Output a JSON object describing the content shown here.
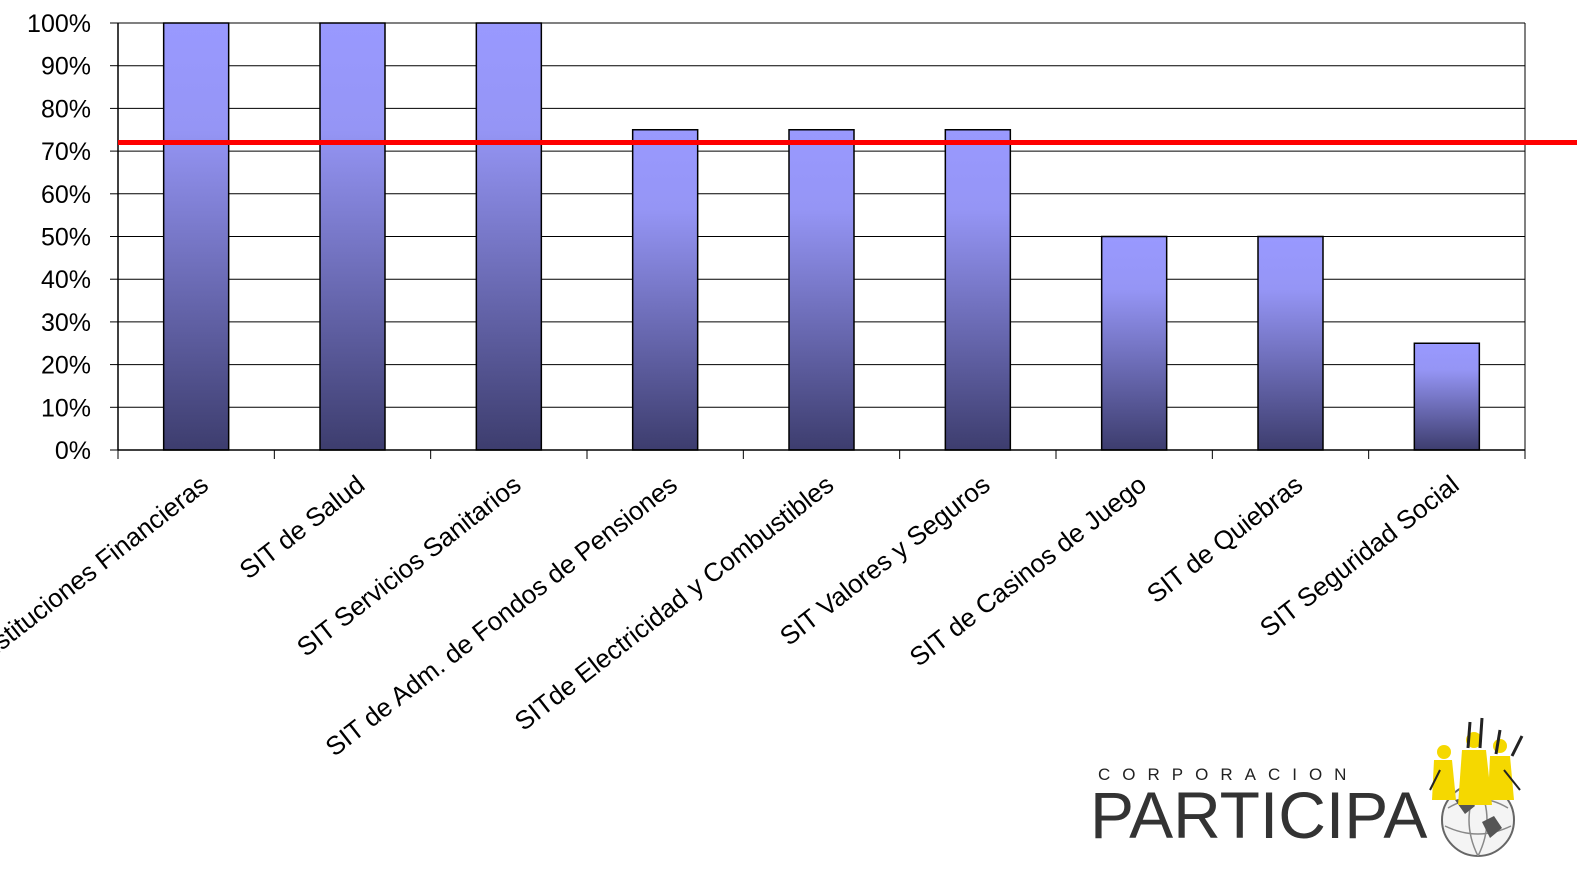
{
  "chart_data": {
    "type": "bar",
    "categories": [
      "SIT Instituciones Financieras",
      "SIT de Salud",
      "SIT Servicios Sanitarios",
      "SIT de Adm. de Fondos de Pensiones",
      "SITde Electricidad y Combustibles",
      "SIT Valores y Seguros",
      "SIT de Casinos de Juego",
      "SIT de Quiebras",
      "SIT Seguridad Social"
    ],
    "values": [
      100,
      100,
      100,
      75,
      75,
      75,
      50,
      50,
      25
    ],
    "yticks": [
      "0%",
      "10%",
      "20%",
      "30%",
      "40%",
      "50%",
      "60%",
      "70%",
      "80%",
      "90%",
      "100%"
    ],
    "ylim": [
      0,
      100
    ],
    "reference_line": 72,
    "grid": true,
    "title": "",
    "xlabel": "",
    "ylabel": "",
    "colors": {
      "bar_top": "#9999ff",
      "bar_bottom": "#3d3d6e",
      "reference_line": "#ff0000",
      "grid": "#000000"
    }
  },
  "logo": {
    "small_text": "CORPORACION",
    "big_text": "PARTICIPA"
  }
}
